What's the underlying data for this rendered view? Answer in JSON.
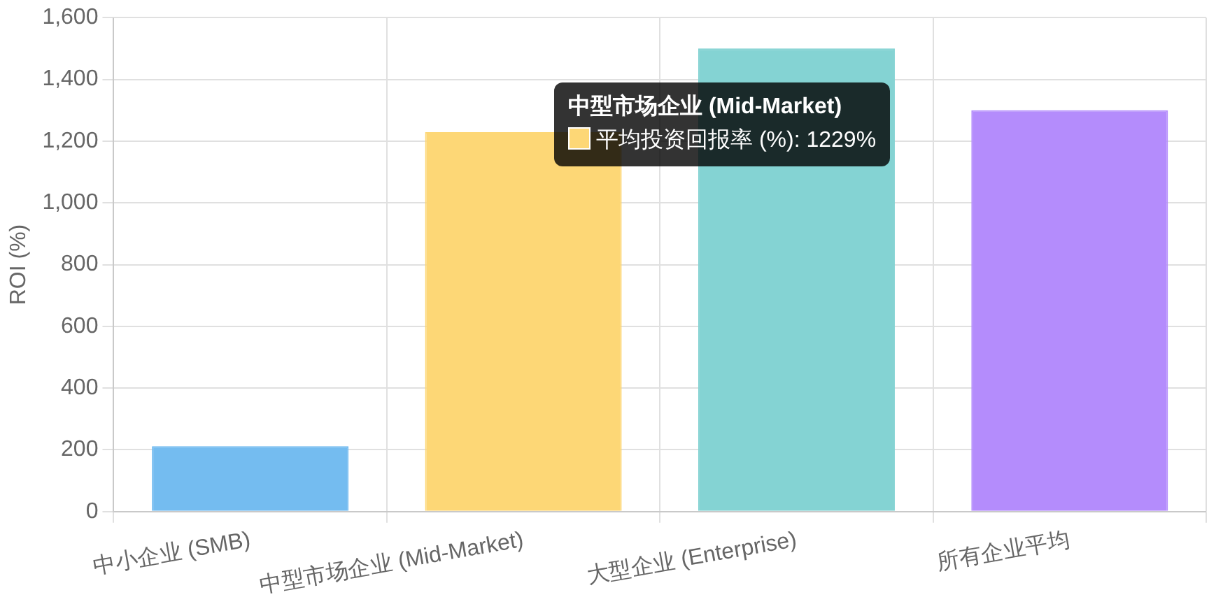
{
  "chart_data": {
    "type": "bar",
    "ylabel": "ROI (%)",
    "categories": [
      "中小企业 (SMB)",
      "中型市场企业 (Mid-Market)",
      "大型企业 (Enterprise)",
      "所有企业平均"
    ],
    "values": [
      212,
      1229,
      1500,
      1300
    ],
    "colors": [
      "#74bcf0",
      "#fdd776",
      "#84d3d3",
      "#b48cfc"
    ],
    "ylim": [
      0,
      1600
    ],
    "yticks": [
      0,
      200,
      400,
      600,
      800,
      {
        "value": 1000,
        "label": "1,000"
      },
      {
        "value": 1200,
        "label": "1,200"
      },
      {
        "value": 1400,
        "label": "1,400"
      },
      {
        "value": 1600,
        "label": "1,600"
      }
    ],
    "grid": true,
    "legend": false,
    "annotations": [
      "中型市场企业 (Mid-Market)",
      "平均投资回报率 (%): 1229%"
    ]
  }
}
